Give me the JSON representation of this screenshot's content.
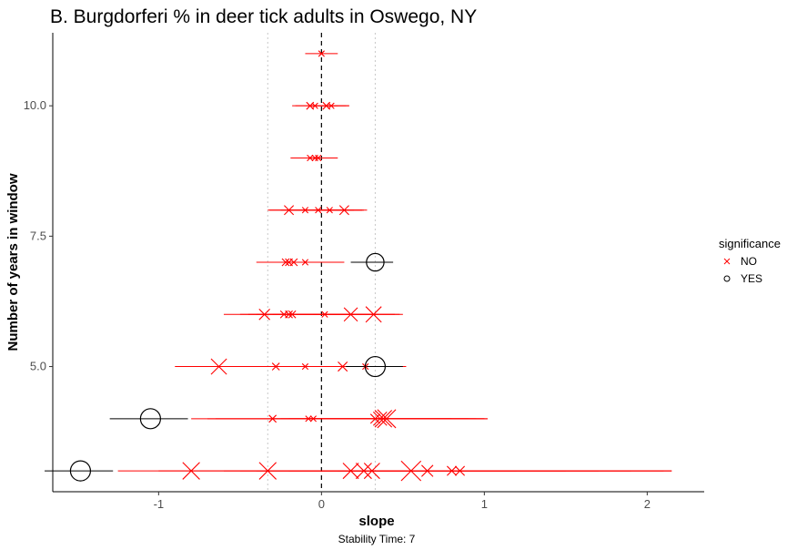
{
  "chart_data": {
    "type": "scatter",
    "title": "B. Burgdorferi % in deer tick adults in Oswego, NY",
    "xlabel": "slope",
    "ylabel": "Number of years in window",
    "caption": "Stability Time: 7",
    "xlim": [
      -1.65,
      2.35
    ],
    "ylim": [
      2.6,
      11.4
    ],
    "xticks": [
      -1,
      0,
      1,
      2
    ],
    "xtick_labels": [
      "-1",
      "0",
      "1",
      "2"
    ],
    "yticks": [
      5.0,
      7.5,
      10.0
    ],
    "ytick_labels": [
      "5.0",
      "7.5",
      "10.0"
    ],
    "reference_lines": {
      "dashed": 0.0,
      "dotted": [
        -0.33,
        0.33
      ]
    },
    "grid": false,
    "legend": {
      "title": "significance",
      "position": "right",
      "entries": [
        {
          "label": "NO",
          "shape": "x",
          "color": "#ff0000"
        },
        {
          "label": "YES",
          "shape": "circle",
          "color": "#000000"
        }
      ]
    },
    "colors": {
      "NO": "#ff0000",
      "YES": "#000000"
    },
    "points": [
      {
        "window": 11,
        "slope": 0.0,
        "low": -0.1,
        "high": 0.1,
        "significance": "NO",
        "size": 0.2
      },
      {
        "window": 10,
        "slope": -0.07,
        "low": -0.18,
        "high": 0.17,
        "significance": "NO",
        "size": 0.3
      },
      {
        "window": 10,
        "slope": -0.04,
        "low": -0.16,
        "high": 0.1,
        "significance": "NO",
        "size": 0.2
      },
      {
        "window": 10,
        "slope": 0.03,
        "low": -0.07,
        "high": 0.15,
        "significance": "NO",
        "size": 0.3
      },
      {
        "window": 10,
        "slope": 0.06,
        "low": -0.05,
        "high": 0.17,
        "significance": "NO",
        "size": 0.2
      },
      {
        "window": 9,
        "slope": -0.07,
        "low": -0.19,
        "high": 0.06,
        "significance": "NO",
        "size": 0.2
      },
      {
        "window": 9,
        "slope": -0.04,
        "low": -0.17,
        "high": 0.09,
        "significance": "NO",
        "size": 0.2
      },
      {
        "window": 9,
        "slope": -0.02,
        "low": -0.15,
        "high": 0.1,
        "significance": "NO",
        "size": 0.2
      },
      {
        "window": 8,
        "slope": -0.2,
        "low": -0.33,
        "high": 0.25,
        "significance": "NO",
        "size": 0.45
      },
      {
        "window": 8,
        "slope": -0.1,
        "low": -0.32,
        "high": 0.15,
        "significance": "NO",
        "size": 0.2
      },
      {
        "window": 8,
        "slope": -0.02,
        "low": -0.25,
        "high": 0.2,
        "significance": "NO",
        "size": 0.2
      },
      {
        "window": 8,
        "slope": 0.05,
        "low": -0.2,
        "high": 0.26,
        "significance": "NO",
        "size": 0.2
      },
      {
        "window": 8,
        "slope": 0.14,
        "low": -0.05,
        "high": 0.28,
        "significance": "NO",
        "size": 0.45
      },
      {
        "window": 7,
        "slope": -0.22,
        "low": -0.4,
        "high": 0.1,
        "significance": "NO",
        "size": 0.3
      },
      {
        "window": 7,
        "slope": -0.2,
        "low": -0.38,
        "high": 0.13,
        "significance": "NO",
        "size": 0.3
      },
      {
        "window": 7,
        "slope": -0.17,
        "low": -0.35,
        "high": 0.14,
        "significance": "NO",
        "size": 0.3
      },
      {
        "window": 7,
        "slope": -0.1,
        "low": -0.3,
        "high": 0.1,
        "significance": "NO",
        "size": 0.2
      },
      {
        "window": 7,
        "slope": 0.33,
        "low": 0.18,
        "high": 0.44,
        "significance": "YES",
        "size": 0.85
      },
      {
        "window": 6,
        "slope": -0.35,
        "low": -0.6,
        "high": 0.2,
        "significance": "NO",
        "size": 0.55
      },
      {
        "window": 6,
        "slope": -0.23,
        "low": -0.5,
        "high": 0.25,
        "significance": "NO",
        "size": 0.3
      },
      {
        "window": 6,
        "slope": -0.2,
        "low": -0.45,
        "high": 0.3,
        "significance": "NO",
        "size": 0.3
      },
      {
        "window": 6,
        "slope": -0.18,
        "low": -0.4,
        "high": 0.35,
        "significance": "NO",
        "size": 0.3
      },
      {
        "window": 6,
        "slope": 0.02,
        "low": -0.3,
        "high": 0.45,
        "significance": "NO",
        "size": 0.2
      },
      {
        "window": 6,
        "slope": 0.18,
        "low": -0.15,
        "high": 0.48,
        "significance": "NO",
        "size": 0.75
      },
      {
        "window": 6,
        "slope": 0.32,
        "low": -0.05,
        "high": 0.5,
        "significance": "NO",
        "size": 0.9
      },
      {
        "window": 5,
        "slope": -0.63,
        "low": -0.9,
        "high": 0.3,
        "significance": "NO",
        "size": 0.9
      },
      {
        "window": 5,
        "slope": -0.28,
        "low": -0.7,
        "high": 0.4,
        "significance": "NO",
        "size": 0.3
      },
      {
        "window": 5,
        "slope": -0.1,
        "low": -0.6,
        "high": 0.45,
        "significance": "NO",
        "size": 0.2
      },
      {
        "window": 5,
        "slope": 0.13,
        "low": -0.4,
        "high": 0.5,
        "significance": "NO",
        "size": 0.45
      },
      {
        "window": 5,
        "slope": 0.27,
        "low": -0.2,
        "high": 0.52,
        "significance": "NO",
        "size": 0.2
      },
      {
        "window": 5,
        "slope": 0.33,
        "low": 0.15,
        "high": 0.5,
        "significance": "YES",
        "size": 1.0
      },
      {
        "window": 4,
        "slope": -1.05,
        "low": -1.3,
        "high": -0.82,
        "significance": "YES",
        "size": 1.0
      },
      {
        "window": 4,
        "slope": -0.3,
        "low": -0.8,
        "high": 0.8,
        "significance": "NO",
        "size": 0.3
      },
      {
        "window": 4,
        "slope": -0.08,
        "low": -0.7,
        "high": 0.9,
        "significance": "NO",
        "size": 0.2
      },
      {
        "window": 4,
        "slope": -0.05,
        "low": -0.65,
        "high": 0.95,
        "significance": "NO",
        "size": 0.2
      },
      {
        "window": 4,
        "slope": 0.33,
        "low": -0.3,
        "high": 1.0,
        "significance": "NO",
        "size": 0.45
      },
      {
        "window": 4,
        "slope": 0.36,
        "low": -0.25,
        "high": 1.02,
        "significance": "NO",
        "size": 0.75
      },
      {
        "window": 4,
        "slope": 0.38,
        "low": -0.2,
        "high": 1.0,
        "significance": "NO",
        "size": 1.0
      },
      {
        "window": 4,
        "slope": 0.4,
        "low": -0.1,
        "high": 1.02,
        "significance": "NO",
        "size": 1.1
      },
      {
        "window": 3,
        "slope": -1.48,
        "low": -1.7,
        "high": -1.28,
        "significance": "YES",
        "size": 1.0
      },
      {
        "window": 3,
        "slope": -0.8,
        "low": -1.25,
        "high": 0.6,
        "significance": "NO",
        "size": 1.0
      },
      {
        "window": 3,
        "slope": -0.33,
        "low": -1.0,
        "high": 1.2,
        "significance": "NO",
        "size": 1.0
      },
      {
        "window": 3,
        "slope": 0.18,
        "low": -0.6,
        "high": 1.5,
        "significance": "NO",
        "size": 0.9
      },
      {
        "window": 3,
        "slope": 0.26,
        "low": -0.5,
        "high": 1.7,
        "significance": "NO",
        "size": 0.9
      },
      {
        "window": 3,
        "slope": 0.31,
        "low": -0.4,
        "high": 1.9,
        "significance": "NO",
        "size": 0.9
      },
      {
        "window": 3,
        "slope": 0.55,
        "low": -0.2,
        "high": 2.1,
        "significance": "NO",
        "size": 1.2
      },
      {
        "window": 3,
        "slope": 0.65,
        "low": 0.0,
        "high": 2.15,
        "significance": "NO",
        "size": 0.6
      },
      {
        "window": 3,
        "slope": 0.8,
        "low": 0.1,
        "high": 2.15,
        "significance": "NO",
        "size": 0.45
      },
      {
        "window": 3,
        "slope": 0.85,
        "low": 0.2,
        "high": 2.15,
        "significance": "NO",
        "size": 0.45
      }
    ]
  }
}
